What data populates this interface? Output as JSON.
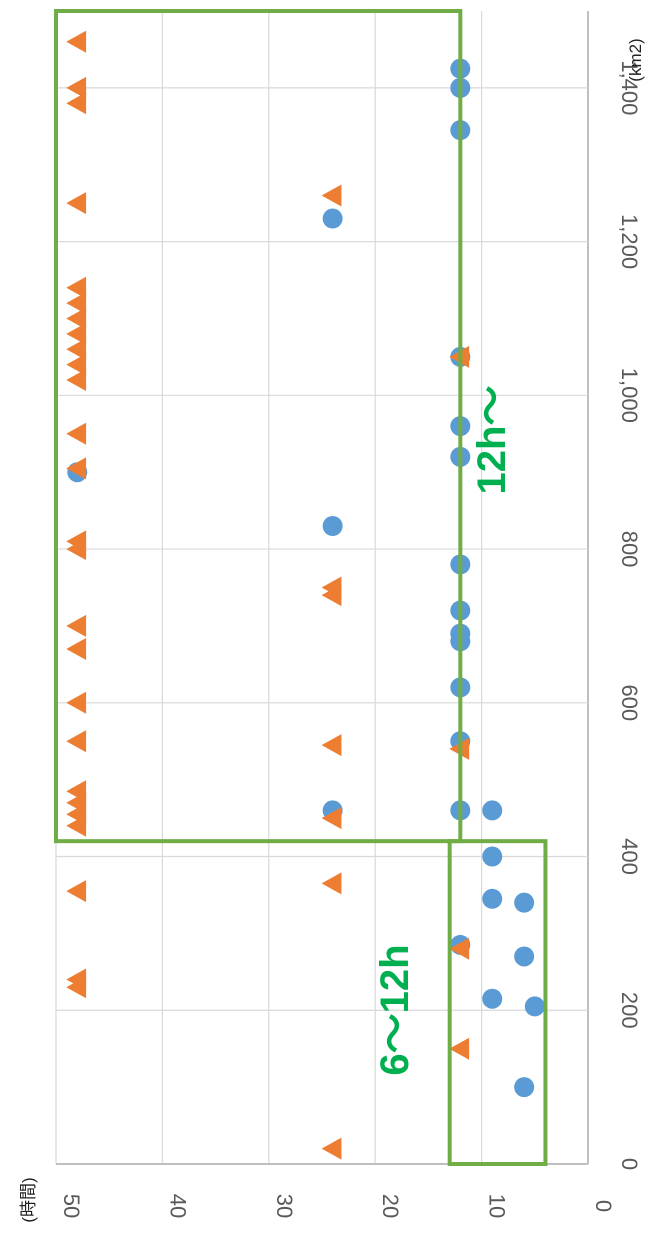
{
  "chart_data": {
    "type": "scatter",
    "orientation": "rotated-90-clockwise",
    "xunit": "(km2)",
    "yunit": "(時間)",
    "xlim": [
      0,
      1500
    ],
    "ylim": [
      0,
      50
    ],
    "xticks": [
      "0",
      "200",
      "400",
      "600",
      "800",
      "1,000",
      "1,200",
      "1,400"
    ],
    "yticks": [
      "0",
      "10",
      "20",
      "30",
      "40",
      "50"
    ],
    "grid": true,
    "series": [
      {
        "marker": "circle",
        "color": "#5B9BD5",
        "points": [
          {
            "x": 100,
            "y": 6
          },
          {
            "x": 205,
            "y": 5
          },
          {
            "x": 215,
            "y": 9
          },
          {
            "x": 270,
            "y": 6
          },
          {
            "x": 285,
            "y": 12
          },
          {
            "x": 340,
            "y": 6
          },
          {
            "x": 345,
            "y": 9
          },
          {
            "x": 400,
            "y": 9
          },
          {
            "x": 460,
            "y": 9
          },
          {
            "x": 460,
            "y": 12
          },
          {
            "x": 460,
            "y": 24
          },
          {
            "x": 550,
            "y": 12
          },
          {
            "x": 620,
            "y": 12
          },
          {
            "x": 680,
            "y": 12
          },
          {
            "x": 690,
            "y": 12
          },
          {
            "x": 720,
            "y": 12
          },
          {
            "x": 780,
            "y": 12
          },
          {
            "x": 830,
            "y": 24
          },
          {
            "x": 900,
            "y": 48
          },
          {
            "x": 920,
            "y": 12
          },
          {
            "x": 960,
            "y": 12
          },
          {
            "x": 1050,
            "y": 12
          },
          {
            "x": 1230,
            "y": 24
          },
          {
            "x": 1345,
            "y": 12
          },
          {
            "x": 1400,
            "y": 12
          },
          {
            "x": 1425,
            "y": 12
          }
        ]
      },
      {
        "marker": "triangle",
        "color": "#ED7D31",
        "points": [
          {
            "x": 20,
            "y": 24
          },
          {
            "x": 150,
            "y": 12
          },
          {
            "x": 230,
            "y": 48
          },
          {
            "x": 240,
            "y": 48
          },
          {
            "x": 280,
            "y": 12
          },
          {
            "x": 355,
            "y": 48
          },
          {
            "x": 365,
            "y": 24
          },
          {
            "x": 440,
            "y": 48
          },
          {
            "x": 450,
            "y": 24
          },
          {
            "x": 455,
            "y": 48
          },
          {
            "x": 470,
            "y": 48
          },
          {
            "x": 485,
            "y": 48
          },
          {
            "x": 540,
            "y": 12
          },
          {
            "x": 545,
            "y": 24
          },
          {
            "x": 550,
            "y": 48
          },
          {
            "x": 600,
            "y": 48
          },
          {
            "x": 670,
            "y": 48
          },
          {
            "x": 700,
            "y": 48
          },
          {
            "x": 740,
            "y": 24
          },
          {
            "x": 750,
            "y": 24
          },
          {
            "x": 800,
            "y": 48
          },
          {
            "x": 810,
            "y": 48
          },
          {
            "x": 905,
            "y": 48
          },
          {
            "x": 950,
            "y": 48
          },
          {
            "x": 1020,
            "y": 48
          },
          {
            "x": 1040,
            "y": 48
          },
          {
            "x": 1050,
            "y": 12
          },
          {
            "x": 1060,
            "y": 48
          },
          {
            "x": 1080,
            "y": 48
          },
          {
            "x": 1100,
            "y": 48
          },
          {
            "x": 1120,
            "y": 48
          },
          {
            "x": 1140,
            "y": 48
          },
          {
            "x": 1250,
            "y": 48
          },
          {
            "x": 1260,
            "y": 24
          },
          {
            "x": 1380,
            "y": 48
          },
          {
            "x": 1400,
            "y": 48
          },
          {
            "x": 1460,
            "y": 48
          }
        ]
      }
    ],
    "annotations": [
      {
        "label": "6～12h",
        "color": "#00B050",
        "x_range": [
          0,
          420
        ],
        "y_range": [
          4,
          13
        ]
      },
      {
        "label": "12h～",
        "color": "#00B050",
        "x_range": [
          420,
          1500
        ],
        "y_range": [
          12,
          50
        ]
      }
    ],
    "box_color": "#70AD47"
  }
}
